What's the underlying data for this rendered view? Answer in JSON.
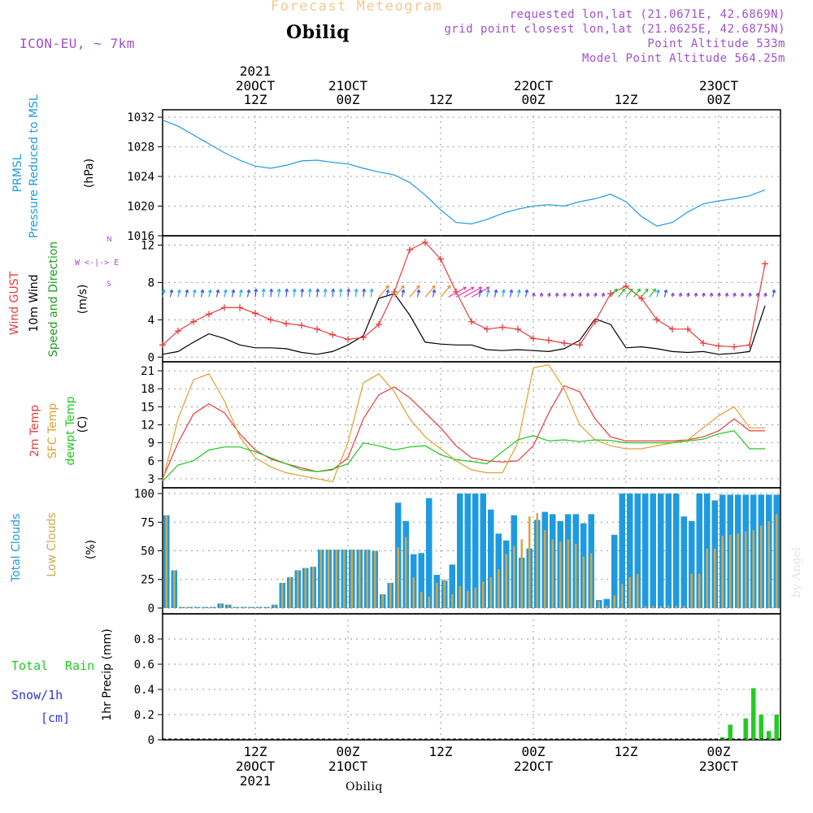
{
  "header": {
    "product_title": "Forecast Meteogram",
    "location": "Obiliq",
    "model": "ICON-EU, ~ 7km",
    "requested": "requested lon,lat (21.0671E, 42.6869N)",
    "gridpoint": "grid point closest lon,lat (21.0625E, 42.6875N)",
    "point_alt": "Point Altitude 533m",
    "model_alt": "Model Point Altitude 564.25m",
    "footer_location": "Obiliq",
    "watermark": "by Angel"
  },
  "colors": {
    "pressure": "#1e9be0",
    "wind_gust": "#e83c3c",
    "wind": "#000000",
    "dir_label": "#1aa01a",
    "temp": "#e83c3c",
    "sfc_temp": "#e0a030",
    "dewpt": "#1ec81e",
    "total_clouds": "#1e9be0",
    "low_clouds": "#d4a64a",
    "rain": "#22cc22",
    "snow": "#3333dd",
    "header_purple": "#a050d0",
    "title_orange": "#f0c890"
  },
  "top_axis": {
    "year_label": "2021",
    "labels": [
      {
        "l1": "20OCT",
        "l2": "12Z",
        "t": 12
      },
      {
        "l1": "21OCT",
        "l2": "00Z",
        "t": 24
      },
      {
        "l1": "",
        "l2": "12Z",
        "t": 36
      },
      {
        "l1": "22OCT",
        "l2": "00Z",
        "t": 48
      },
      {
        "l1": "",
        "l2": "12Z",
        "t": 60
      },
      {
        "l1": "23OCT",
        "l2": "00Z",
        "t": 72
      }
    ]
  },
  "bottom_axis": {
    "labels": [
      {
        "l1": "12Z",
        "l2": "20OCT",
        "l3": "2021",
        "t": 12
      },
      {
        "l1": "00Z",
        "l2": "21OCT",
        "l3": "",
        "t": 24
      },
      {
        "l1": "12Z",
        "l2": "",
        "l3": "",
        "t": 36
      },
      {
        "l1": "00Z",
        "l2": "22OCT",
        "l3": "",
        "t": 48
      },
      {
        "l1": "12Z",
        "l2": "",
        "l3": "",
        "t": 60
      },
      {
        "l1": "00Z",
        "l2": "23OCT",
        "l3": "",
        "t": 72
      }
    ]
  },
  "panel_labels": {
    "pressure": {
      "line1": "PRMSL",
      "line2": "Pressure Reduced to MSL",
      "unit": "(hPa)"
    },
    "wind": {
      "gust": "Wind GUST",
      "wind": "10m Wind",
      "dir": "Speed and Direction",
      "unit": "(m/s)",
      "compass": "W <-|-> E",
      "compass_n": "N",
      "compass_s": "S"
    },
    "temp": {
      "temp": "2m Temp",
      "sfc": "SFC Temp",
      "dewpt": "dewpt Temp",
      "unit": "(C)"
    },
    "clouds": {
      "total": "Total Clouds",
      "low": "Low Clouds",
      "unit": "(%)"
    },
    "precip": {
      "rain_a": "Total",
      "rain_b": "Rain",
      "snow": "Snow/1h",
      "snow_unit": "[cm]",
      "unit": "1hr Precip (mm)"
    }
  },
  "chart_data": [
    {
      "id": "pressure",
      "type": "line",
      "title": "PRMSL Pressure Reduced to MSL",
      "ylabel": "(hPa)",
      "ylim": [
        1016,
        1033
      ],
      "yticks": [
        1016,
        1020,
        1024,
        1028,
        1032
      ],
      "series": [
        {
          "name": "PRMSL",
          "x": [
            0,
            2,
            4,
            6,
            8,
            10,
            12,
            14,
            16,
            18,
            20,
            22,
            24,
            26,
            28,
            30,
            32,
            34,
            36,
            38,
            40,
            42,
            44,
            46,
            48,
            50,
            52,
            54,
            56,
            58,
            60,
            62,
            64,
            66,
            68,
            70,
            72,
            74,
            76,
            78
          ],
          "values": [
            1031.6,
            1030.8,
            1029.6,
            1028.4,
            1027.2,
            1026.2,
            1025.4,
            1025.1,
            1025.5,
            1026.1,
            1026.2,
            1025.9,
            1025.7,
            1025.1,
            1024.6,
            1024.2,
            1023.2,
            1021.5,
            1019.5,
            1017.8,
            1017.6,
            1018.2,
            1019.0,
            1019.6,
            1020.0,
            1020.2,
            1020.0,
            1020.6,
            1021.0,
            1021.6,
            1020.6,
            1018.6,
            1017.3,
            1017.8,
            1019.2,
            1020.3,
            1020.7,
            1021.0,
            1021.4,
            1022.2
          ]
        }
      ]
    },
    {
      "id": "wind",
      "type": "line",
      "title": "Wind GUST / 10m Wind Speed and Direction",
      "ylabel": "(m/s)",
      "ylim": [
        -0.5,
        13
      ],
      "yticks": [
        0,
        4,
        8,
        12
      ],
      "series": [
        {
          "name": "Wind GUST",
          "x": [
            0,
            2,
            4,
            6,
            8,
            10,
            12,
            14,
            16,
            18,
            20,
            22,
            24,
            26,
            28,
            30,
            32,
            34,
            36,
            38,
            40,
            42,
            44,
            46,
            48,
            50,
            52,
            54,
            56,
            58,
            60,
            62,
            64,
            66,
            68,
            70,
            72,
            74,
            76,
            78
          ],
          "values": [
            1.3,
            2.8,
            3.8,
            4.6,
            5.3,
            5.3,
            4.7,
            4.0,
            3.6,
            3.4,
            3.0,
            2.4,
            1.9,
            2.1,
            3.5,
            7.0,
            11.5,
            12.3,
            10.5,
            7.0,
            3.8,
            3.0,
            3.2,
            3.0,
            2.0,
            1.8,
            1.5,
            1.3,
            3.8,
            6.8,
            7.6,
            6.3,
            4.0,
            3.0,
            3.0,
            1.5,
            1.2,
            1.1,
            1.3,
            10.0
          ]
        },
        {
          "name": "10m Wind",
          "x": [
            0,
            2,
            4,
            6,
            8,
            10,
            12,
            14,
            16,
            18,
            20,
            22,
            24,
            26,
            28,
            30,
            32,
            34,
            36,
            38,
            40,
            42,
            44,
            46,
            48,
            50,
            52,
            54,
            56,
            58,
            60,
            62,
            64,
            66,
            68,
            70,
            72,
            74,
            76,
            78
          ],
          "values": [
            0.3,
            0.6,
            1.6,
            2.5,
            2.0,
            1.3,
            1.0,
            1.0,
            0.9,
            0.5,
            0.3,
            0.6,
            1.3,
            2.3,
            6.3,
            6.8,
            4.5,
            1.6,
            1.4,
            1.3,
            1.3,
            0.8,
            0.7,
            0.8,
            0.7,
            0.6,
            0.9,
            1.8,
            4.1,
            3.5,
            1.0,
            1.1,
            0.9,
            0.6,
            0.5,
            0.6,
            0.3,
            0.4,
            0.6,
            5.5
          ]
        }
      ],
      "arrows": {
        "y_value": 6.7,
        "x_start": 0,
        "x_step": 1
      }
    },
    {
      "id": "temperature",
      "type": "line",
      "title": "2m Temp / SFC Temp / dewpt Temp",
      "ylabel": "(C)",
      "ylim": [
        1.5,
        22.5
      ],
      "yticks": [
        3,
        6,
        9,
        12,
        15,
        18,
        21
      ],
      "series": [
        {
          "name": "2m Temp",
          "x": [
            0,
            2,
            4,
            6,
            8,
            10,
            12,
            14,
            16,
            18,
            20,
            22,
            24,
            26,
            28,
            30,
            32,
            34,
            36,
            38,
            40,
            42,
            44,
            46,
            48,
            50,
            52,
            54,
            56,
            58,
            60,
            62,
            64,
            66,
            68,
            70,
            72,
            74,
            76,
            78
          ],
          "values": [
            3.0,
            9.0,
            13.8,
            15.5,
            14.0,
            10.5,
            7.8,
            6.3,
            5.5,
            4.8,
            4.2,
            4.5,
            6.5,
            13.0,
            17.0,
            18.3,
            16.5,
            14.0,
            11.5,
            8.5,
            6.5,
            6.0,
            5.8,
            6.0,
            8.5,
            14.0,
            18.5,
            17.5,
            13.0,
            10.0,
            9.3,
            9.3,
            9.3,
            9.3,
            9.5,
            10.0,
            11.0,
            13.0,
            11.0,
            11.0
          ]
        },
        {
          "name": "SFC Temp",
          "x": [
            0,
            2,
            4,
            6,
            8,
            10,
            12,
            14,
            16,
            18,
            20,
            22,
            24,
            26,
            28,
            30,
            32,
            34,
            36,
            38,
            40,
            42,
            44,
            46,
            48,
            50,
            52,
            54,
            56,
            58,
            60,
            62,
            64,
            66,
            68,
            70,
            72,
            74,
            76,
            78
          ],
          "values": [
            2.6,
            13.0,
            19.5,
            20.5,
            16.0,
            10.0,
            6.5,
            5.0,
            4.0,
            3.5,
            3.0,
            2.5,
            9.0,
            19.0,
            20.5,
            17.5,
            13.0,
            10.0,
            8.0,
            6.0,
            4.5,
            4.0,
            4.0,
            9.0,
            21.5,
            22.0,
            18.0,
            12.0,
            9.5,
            8.5,
            8.0,
            8.0,
            8.5,
            9.0,
            9.5,
            11.5,
            13.5,
            15.0,
            11.5,
            11.5
          ]
        },
        {
          "name": "dewpt Temp",
          "x": [
            0,
            2,
            4,
            6,
            8,
            10,
            12,
            14,
            16,
            18,
            20,
            22,
            24,
            26,
            28,
            30,
            32,
            34,
            36,
            38,
            40,
            42,
            44,
            46,
            48,
            50,
            52,
            54,
            56,
            58,
            60,
            62,
            64,
            66,
            68,
            70,
            72,
            74,
            76,
            78
          ],
          "values": [
            2.6,
            5.3,
            6.0,
            7.8,
            8.3,
            8.3,
            7.5,
            6.5,
            5.5,
            4.5,
            4.2,
            4.6,
            5.5,
            9.0,
            8.5,
            7.8,
            8.3,
            8.5,
            7.0,
            6.2,
            5.9,
            5.5,
            7.5,
            9.5,
            10.2,
            9.3,
            9.5,
            9.2,
            9.5,
            9.4,
            9.0,
            9.0,
            9.0,
            9.0,
            9.3,
            9.6,
            10.5,
            11.0,
            8.0,
            8.0
          ]
        }
      ]
    },
    {
      "id": "clouds",
      "type": "bar",
      "title": "Total Clouds / Low Clouds",
      "ylabel": "(%)",
      "ylim": [
        -5,
        105
      ],
      "yticks": [
        0,
        25,
        50,
        75,
        100
      ],
      "x": [
        0,
        1,
        2,
        3,
        4,
        5,
        6,
        7,
        8,
        9,
        10,
        11,
        12,
        13,
        14,
        15,
        16,
        17,
        18,
        19,
        20,
        21,
        22,
        23,
        24,
        25,
        26,
        27,
        28,
        29,
        30,
        31,
        32,
        33,
        34,
        35,
        36,
        37,
        38,
        39,
        40,
        41,
        42,
        43,
        44,
        45,
        46,
        47,
        48,
        49,
        50,
        51,
        52,
        53,
        54,
        55,
        56,
        57,
        58,
        59,
        60,
        61,
        62,
        63,
        64,
        65,
        66,
        67,
        68,
        69,
        70,
        71,
        72,
        73,
        74,
        75,
        76,
        77,
        78,
        79
      ],
      "series": [
        {
          "name": "Total Clouds",
          "values": [
            81,
            33,
            1,
            1,
            1,
            1,
            1,
            4,
            3,
            1,
            1,
            1,
            1,
            1,
            3,
            22,
            27,
            33,
            35,
            36,
            51,
            51,
            51,
            51,
            51,
            51,
            51,
            50,
            12,
            22,
            92,
            76,
            47,
            48,
            96,
            29,
            24,
            38,
            100,
            100,
            100,
            100,
            86,
            65,
            59,
            81,
            44,
            52,
            77,
            84,
            82,
            76,
            82,
            82,
            74,
            82,
            7,
            8,
            64,
            100,
            100,
            100,
            100,
            100,
            100,
            100,
            100,
            80,
            76,
            100,
            100,
            94,
            99,
            99,
            99,
            99,
            99,
            99,
            99,
            99
          ]
        },
        {
          "name": "Low Clouds",
          "values": [
            81,
            33,
            1,
            1,
            1,
            1,
            1,
            4,
            3,
            1,
            1,
            1,
            1,
            1,
            3,
            22,
            27,
            33,
            35,
            36,
            51,
            51,
            51,
            51,
            51,
            51,
            51,
            50,
            12,
            22,
            53,
            62,
            27,
            14,
            10,
            22,
            25,
            12,
            19,
            15,
            18,
            23,
            27,
            34,
            47,
            54,
            60,
            80,
            83,
            68,
            60,
            58,
            60,
            56,
            45,
            48,
            6,
            2,
            11,
            21,
            27,
            30,
            2,
            2,
            2,
            2,
            2,
            2,
            30,
            30,
            52,
            52,
            63,
            64,
            65,
            67,
            68,
            72,
            76,
            82
          ]
        }
      ]
    },
    {
      "id": "precip",
      "type": "bar",
      "title": "1hr Precip",
      "ylabel": "1hr Precip (mm)",
      "ylim": [
        0,
        1.0
      ],
      "yticks": [
        0,
        0.2,
        0.4,
        0.6,
        0.8
      ],
      "x": [
        72,
        73,
        74,
        75,
        76,
        77,
        78,
        79
      ],
      "series": [
        {
          "name": "Total Rain",
          "values": [
            0.02,
            0.12,
            0.0,
            0.17,
            0.41,
            0.2,
            0.07,
            0.2
          ]
        }
      ]
    }
  ]
}
